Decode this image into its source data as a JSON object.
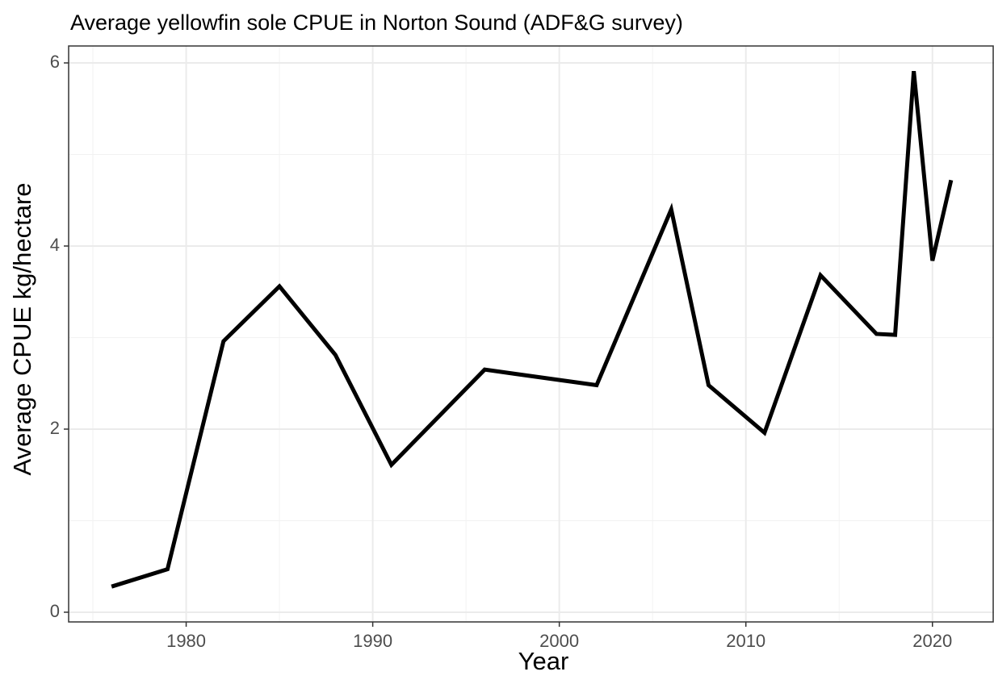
{
  "chart_data": {
    "type": "line",
    "title": "Average yellowfin sole CPUE in Norton Sound (ADF&G survey)",
    "x_label": "Year",
    "y_label": "Average CPUE kg/hectare",
    "x": [
      1976,
      1979,
      1982,
      1985,
      1988,
      1991,
      1996,
      2002,
      2006,
      2008,
      2011,
      2014,
      2017,
      2018,
      2019,
      2020,
      2021
    ],
    "series": [
      {
        "color": "#000000",
        "values": [
          0.28,
          0.47,
          2.96,
          3.56,
          2.81,
          1.61,
          2.65,
          2.48,
          4.4,
          2.48,
          1.96,
          3.68,
          3.04,
          3.03,
          5.91,
          3.84,
          4.72
        ]
      }
    ],
    "xlim": [
      1973.7,
      2023.3
    ],
    "ylim": [
      -0.106,
      6.185
    ],
    "xticks": [
      1980,
      1990,
      2000,
      2010,
      2020
    ],
    "yticks": [
      0,
      2,
      4,
      6
    ],
    "x_minor_grid": [
      1975,
      1985,
      1995,
      2005,
      2015
    ],
    "y_minor_grid": [
      1,
      3,
      5
    ],
    "grid": true
  }
}
